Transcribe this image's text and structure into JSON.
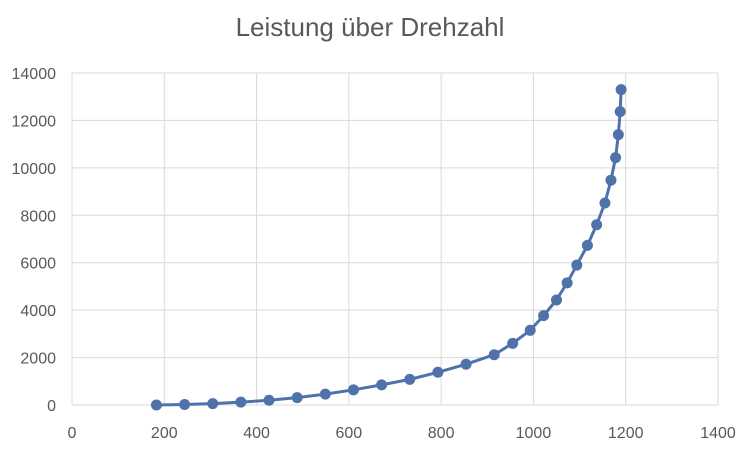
{
  "chart_data": {
    "type": "line",
    "title": "Leistung über Drehzahl",
    "xlabel": "",
    "ylabel": "",
    "xlim": [
      0,
      1400
    ],
    "ylim": [
      0,
      14000
    ],
    "x_ticks": [
      0,
      200,
      400,
      600,
      800,
      1000,
      1200,
      1400
    ],
    "y_ticks": [
      0,
      2000,
      4000,
      6000,
      8000,
      10000,
      12000,
      14000
    ],
    "grid": true,
    "legend": "none",
    "series": [
      {
        "color": "#4f72ab",
        "x": [
          183,
          244,
          305,
          366,
          427,
          488,
          549,
          610,
          671,
          732,
          793,
          854,
          915,
          955,
          993,
          1022,
          1050,
          1073,
          1094,
          1117,
          1137,
          1155,
          1168,
          1178,
          1184,
          1188,
          1190
        ],
        "y": [
          0,
          20,
          60,
          120,
          200,
          310,
          460,
          640,
          850,
          1080,
          1380,
          1720,
          2120,
          2600,
          3150,
          3770,
          4430,
          5150,
          5900,
          6730,
          7600,
          8520,
          9480,
          10430,
          11400,
          12370,
          13300
        ]
      }
    ]
  }
}
